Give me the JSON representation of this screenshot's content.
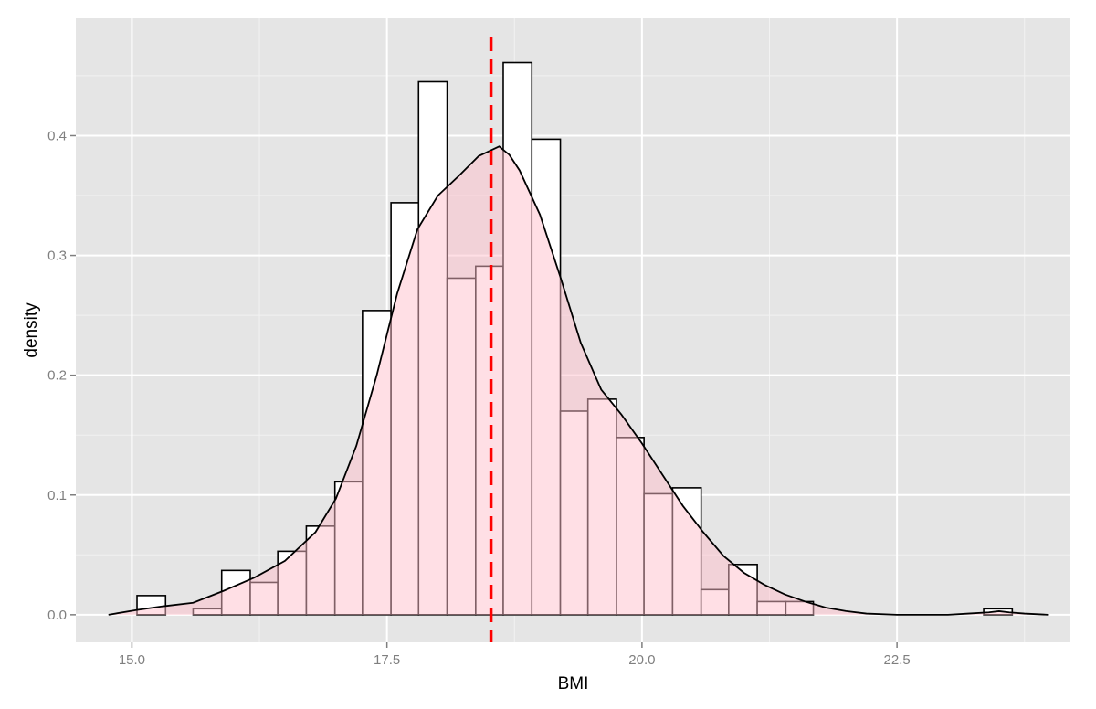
{
  "chart_data": {
    "type": "bar",
    "subtype": "histogram-with-density",
    "title": "",
    "xlabel": "BMI",
    "ylabel": "density",
    "xlim": [
      14.45,
      24.2
    ],
    "ylim": [
      -0.023,
      0.498
    ],
    "x_ticks": [
      "15.0",
      "17.5",
      "20.0",
      "22.5"
    ],
    "y_ticks": [
      "0.0",
      "0.1",
      "0.2",
      "0.3",
      "0.4"
    ],
    "grid": true,
    "bin_width": 0.276,
    "histogram_bins": [
      {
        "start": 15.05,
        "end": 15.33,
        "density": 0.016
      },
      {
        "start": 15.33,
        "end": 15.6,
        "density": 0.0
      },
      {
        "start": 15.6,
        "end": 15.88,
        "density": 0.005
      },
      {
        "start": 15.88,
        "end": 16.16,
        "density": 0.037
      },
      {
        "start": 16.16,
        "end": 16.43,
        "density": 0.027
      },
      {
        "start": 16.43,
        "end": 16.71,
        "density": 0.053
      },
      {
        "start": 16.71,
        "end": 16.99,
        "density": 0.074
      },
      {
        "start": 16.99,
        "end": 17.26,
        "density": 0.111
      },
      {
        "start": 17.26,
        "end": 17.54,
        "density": 0.254
      },
      {
        "start": 17.54,
        "end": 17.81,
        "density": 0.344
      },
      {
        "start": 17.81,
        "end": 18.09,
        "density": 0.445
      },
      {
        "start": 18.09,
        "end": 18.37,
        "density": 0.281
      },
      {
        "start": 18.37,
        "end": 18.64,
        "density": 0.291
      },
      {
        "start": 18.64,
        "end": 18.92,
        "density": 0.461
      },
      {
        "start": 18.92,
        "end": 19.2,
        "density": 0.397
      },
      {
        "start": 19.2,
        "end": 19.47,
        "density": 0.17
      },
      {
        "start": 19.47,
        "end": 19.75,
        "density": 0.18
      },
      {
        "start": 19.75,
        "end": 20.02,
        "density": 0.148
      },
      {
        "start": 20.02,
        "end": 20.3,
        "density": 0.101
      },
      {
        "start": 20.3,
        "end": 20.58,
        "density": 0.106
      },
      {
        "start": 20.58,
        "end": 20.85,
        "density": 0.021
      },
      {
        "start": 20.85,
        "end": 21.13,
        "density": 0.042
      },
      {
        "start": 21.13,
        "end": 21.41,
        "density": 0.011
      },
      {
        "start": 21.41,
        "end": 21.68,
        "density": 0.011
      },
      {
        "start": 23.35,
        "end": 23.63,
        "density": 0.005
      }
    ],
    "density_curve": {
      "x": [
        14.77,
        15.05,
        15.3,
        15.6,
        15.9,
        16.2,
        16.5,
        16.8,
        17.0,
        17.2,
        17.4,
        17.6,
        17.8,
        18.0,
        18.2,
        18.4,
        18.55,
        18.6,
        18.7,
        18.8,
        19.0,
        19.2,
        19.4,
        19.6,
        19.8,
        20.0,
        20.2,
        20.4,
        20.6,
        20.8,
        21.0,
        21.2,
        21.4,
        21.6,
        21.8,
        22.0,
        22.2,
        22.5,
        22.8,
        23.0,
        23.2,
        23.4,
        23.5,
        23.6,
        23.75,
        23.98
      ],
      "y": [
        0.0,
        0.004,
        0.007,
        0.01,
        0.02,
        0.031,
        0.045,
        0.069,
        0.097,
        0.141,
        0.2,
        0.268,
        0.322,
        0.35,
        0.366,
        0.383,
        0.389,
        0.391,
        0.384,
        0.371,
        0.334,
        0.282,
        0.227,
        0.188,
        0.167,
        0.143,
        0.117,
        0.091,
        0.069,
        0.049,
        0.035,
        0.025,
        0.017,
        0.011,
        0.006,
        0.003,
        0.001,
        0.0,
        0.0,
        0.0,
        0.001,
        0.002,
        0.003,
        0.002,
        0.001,
        0.0
      ]
    },
    "mean_line": {
      "x": 18.52,
      "color": "#ff0000",
      "style": "dashed"
    },
    "colors": {
      "panel_background": "#e5e5e5",
      "grid_major": "#ffffff",
      "grid_minor": "#f2f2f2",
      "bar_fill": "#ffffff",
      "bar_stroke": "#000000",
      "density_fill": "#ffc0cb",
      "density_stroke": "#000000"
    }
  }
}
